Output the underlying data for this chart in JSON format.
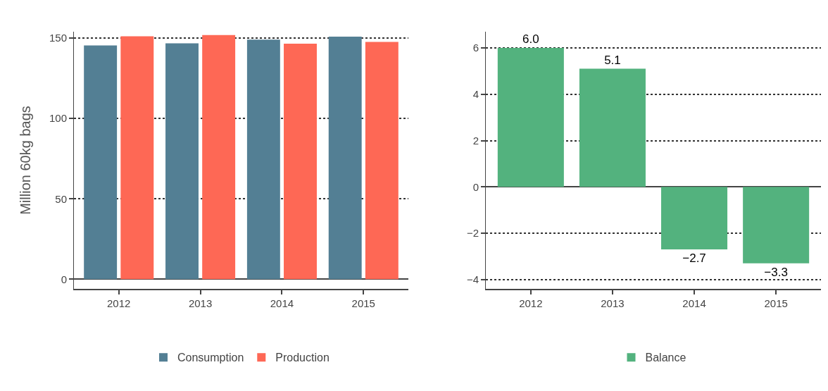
{
  "chart_data": [
    {
      "type": "bar",
      "categories": [
        "2012",
        "2013",
        "2014",
        "2015"
      ],
      "ylabel": "Million 60kg bags",
      "ylim": [
        -6,
        154
      ],
      "yticks": [
        0,
        50,
        100,
        150
      ],
      "grid": "y",
      "legend": "bottom",
      "series": [
        {
          "name": "Consumption",
          "color": "#537f94",
          "values": [
            145.4,
            146.8,
            149.1,
            150.9
          ]
        },
        {
          "name": "Production",
          "color": "#fe6855",
          "values": [
            151.2,
            151.9,
            146.5,
            147.6
          ]
        }
      ]
    },
    {
      "type": "bar",
      "categories": [
        "2012",
        "2013",
        "2014",
        "2015"
      ],
      "ylim": [
        -4.4,
        6.7
      ],
      "yticks": [
        -4,
        -2,
        0,
        2,
        4,
        6
      ],
      "grid": "y",
      "legend": "bottom",
      "series": [
        {
          "name": "Balance",
          "color": "#53b27e",
          "values": [
            6.0,
            5.1,
            -2.7,
            -3.3
          ],
          "value_labels": [
            "6.0",
            "5.1",
            "−2.7",
            "−3.3"
          ]
        }
      ]
    }
  ]
}
